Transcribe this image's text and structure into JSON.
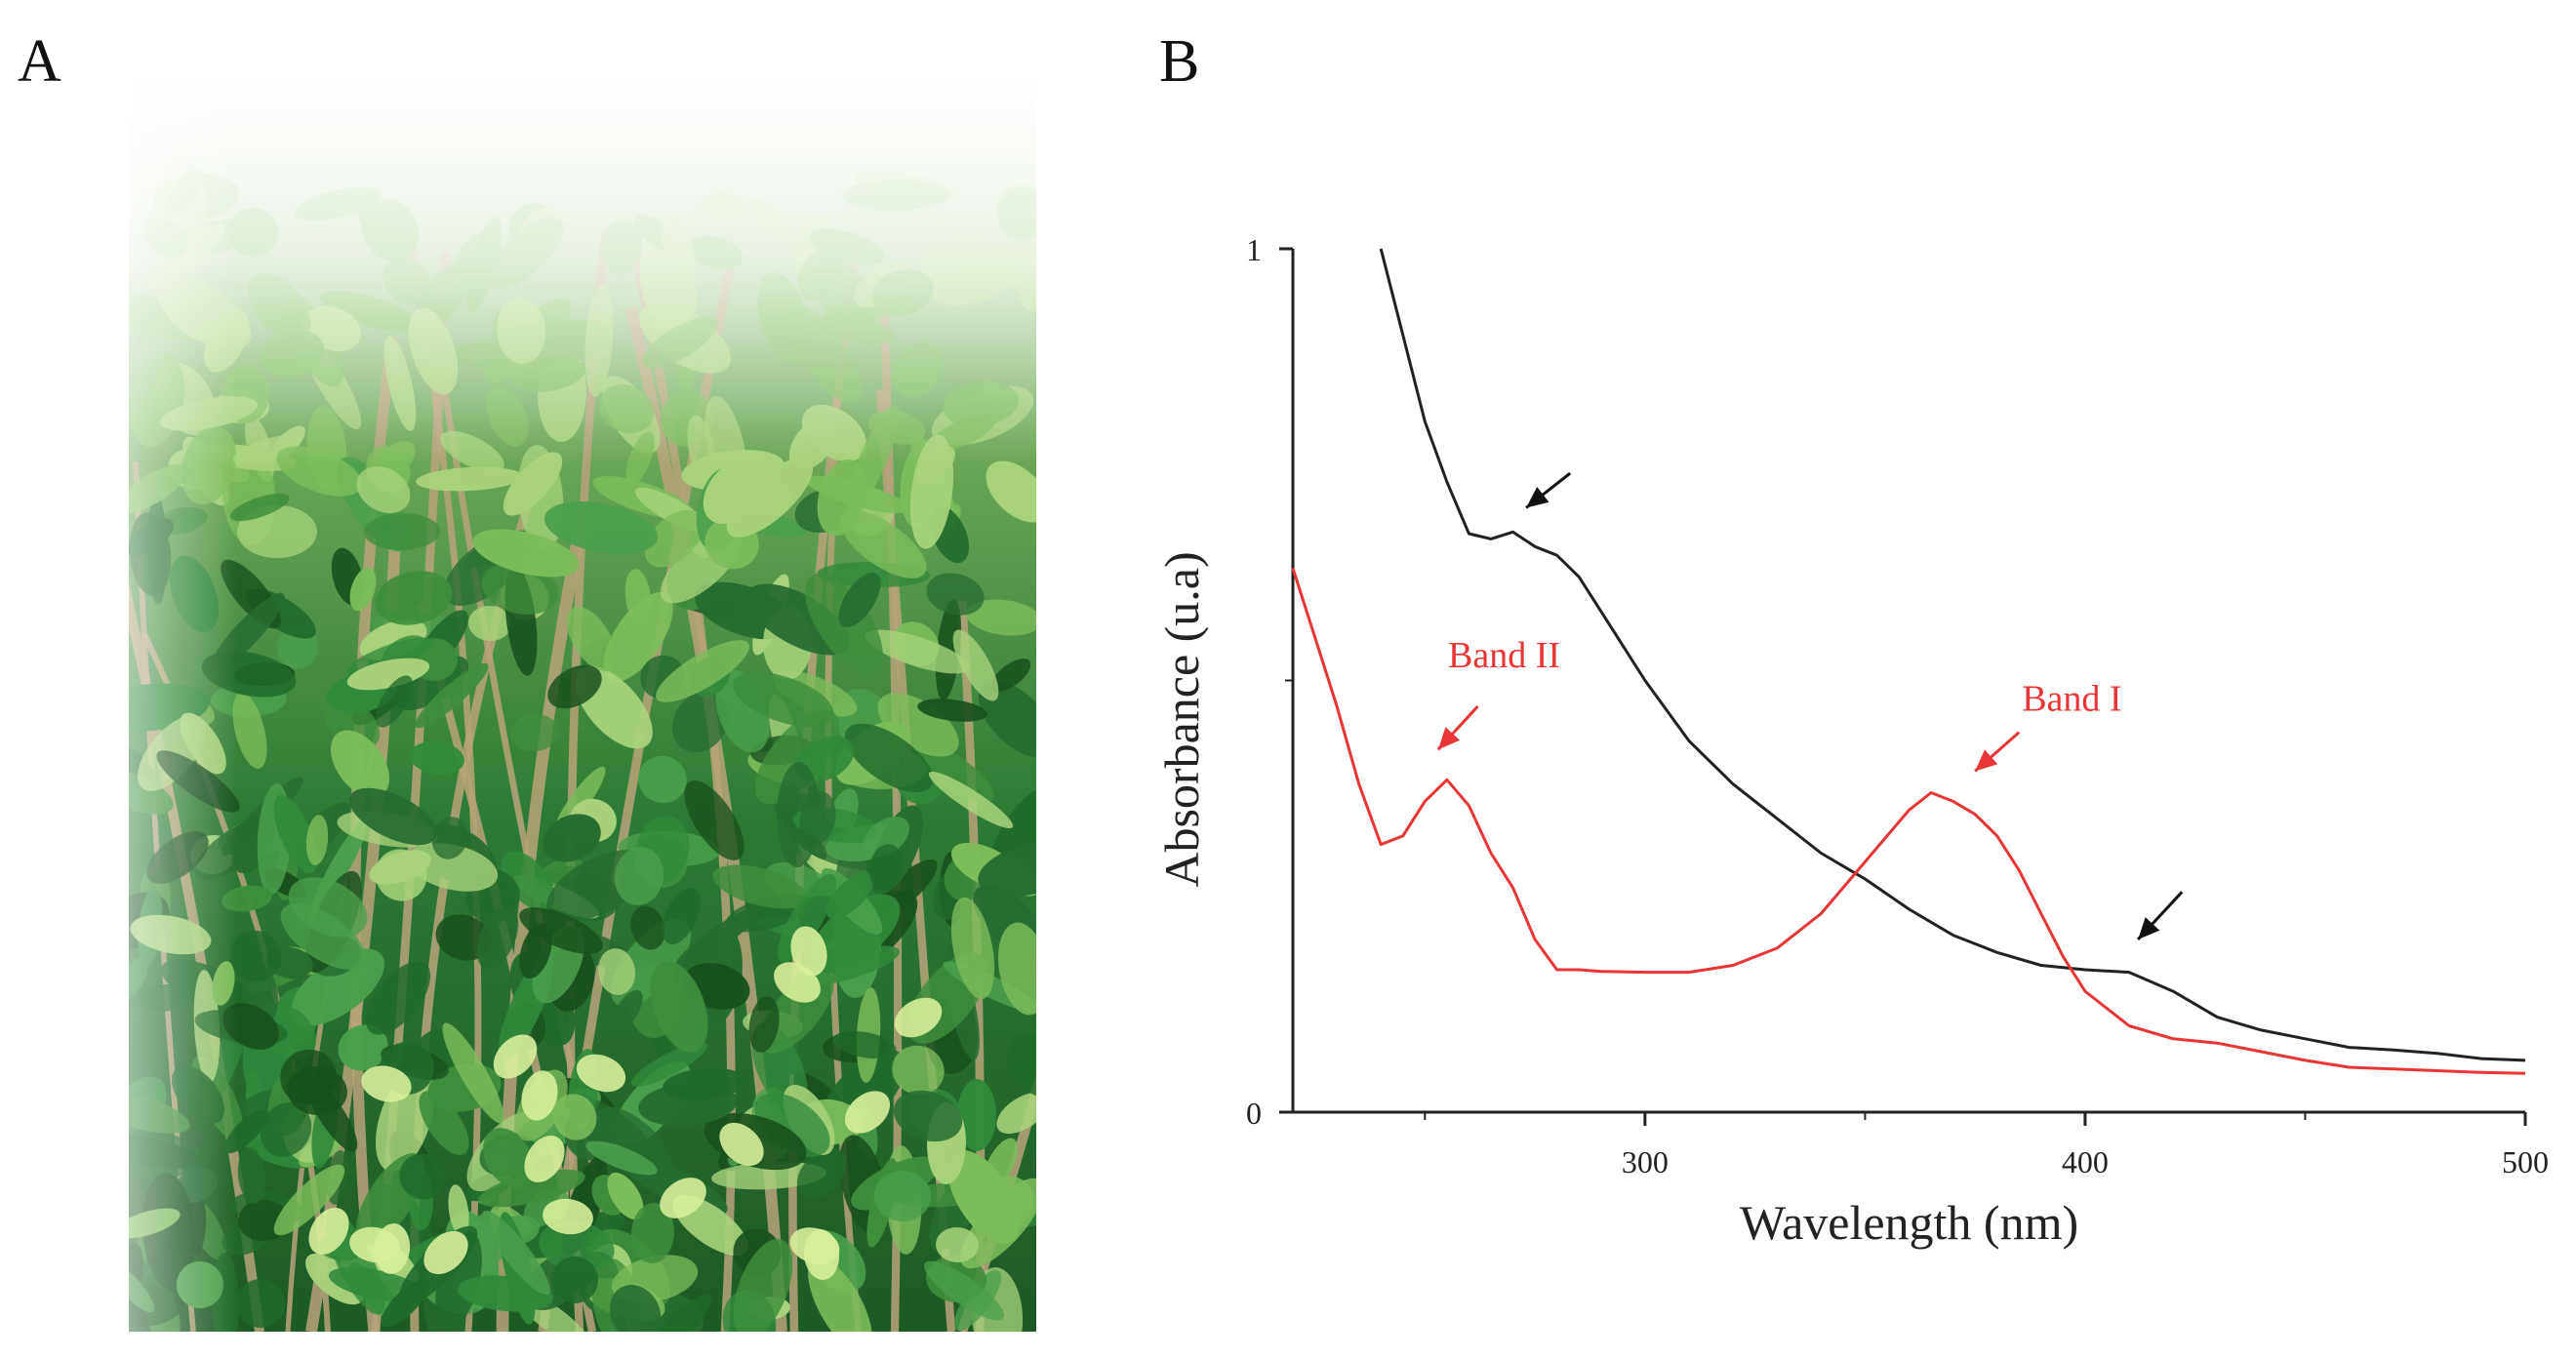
{
  "panels": {
    "a_label": "A",
    "b_label": "B"
  },
  "photo": {
    "subject": "leafy green shrub photograph",
    "colors": {
      "dark_leaf": "#1f6b2a",
      "mid_leaf": "#3d8f3a",
      "light_leaf": "#a8d27a",
      "stem": "#b9a37a",
      "sky": "#f4f8f0"
    }
  },
  "chart_data": {
    "type": "line",
    "xlabel": "Wavelength (nm)",
    "ylabel": "Absorbance (u.a)",
    "xlim": [
      220,
      500
    ],
    "ylim": [
      0,
      1
    ],
    "x_ticks": [
      300,
      400,
      500
    ],
    "y_ticks": [
      0,
      1
    ],
    "grid": false,
    "series": [
      {
        "color": "#222222",
        "x": [
          240,
          245,
          250,
          255,
          260,
          265,
          270,
          275,
          280,
          285,
          290,
          300,
          310,
          320,
          330,
          340,
          350,
          360,
          370,
          380,
          390,
          400,
          410,
          420,
          430,
          440,
          450,
          460,
          470,
          480,
          490,
          500
        ],
        "y": [
          1.0,
          0.9,
          0.8,
          0.73,
          0.67,
          0.664,
          0.672,
          0.655,
          0.645,
          0.62,
          0.58,
          0.5,
          0.43,
          0.38,
          0.34,
          0.3,
          0.27,
          0.235,
          0.205,
          0.185,
          0.17,
          0.165,
          0.162,
          0.14,
          0.11,
          0.095,
          0.085,
          0.075,
          0.072,
          0.068,
          0.062,
          0.06
        ]
      },
      {
        "color": "#e83535",
        "x": [
          220,
          225,
          230,
          235,
          240,
          245,
          250,
          255,
          260,
          265,
          270,
          275,
          280,
          285,
          290,
          300,
          310,
          320,
          330,
          340,
          350,
          360,
          365,
          370,
          375,
          380,
          385,
          390,
          395,
          400,
          410,
          420,
          430,
          440,
          450,
          460,
          470,
          480,
          490,
          500
        ],
        "y": [
          0.63,
          0.55,
          0.47,
          0.38,
          0.31,
          0.32,
          0.36,
          0.385,
          0.355,
          0.3,
          0.26,
          0.2,
          0.165,
          0.165,
          0.163,
          0.162,
          0.162,
          0.17,
          0.19,
          0.23,
          0.29,
          0.35,
          0.37,
          0.36,
          0.345,
          0.32,
          0.28,
          0.23,
          0.18,
          0.14,
          0.1,
          0.085,
          0.08,
          0.07,
          0.06,
          0.052,
          0.05,
          0.048,
          0.046,
          0.045
        ]
      }
    ],
    "annotations": [
      {
        "text": "Band II",
        "color": "#e83535",
        "text_x": 268,
        "text_y": 0.515,
        "arrow_from": [
          262,
          0.47
        ],
        "arrow_to": [
          253,
          0.42
        ]
      },
      {
        "text": "Band I",
        "color": "#e83535",
        "text_x": 397,
        "text_y": 0.465,
        "arrow_from": [
          385,
          0.44
        ],
        "arrow_to": [
          375,
          0.395
        ]
      },
      {
        "text": "",
        "color": "#111111",
        "arrow_from": [
          283,
          0.74
        ],
        "arrow_to": [
          273,
          0.7
        ]
      },
      {
        "text": "",
        "color": "#111111",
        "arrow_from": [
          422,
          0.255
        ],
        "arrow_to": [
          412,
          0.2
        ]
      }
    ]
  }
}
